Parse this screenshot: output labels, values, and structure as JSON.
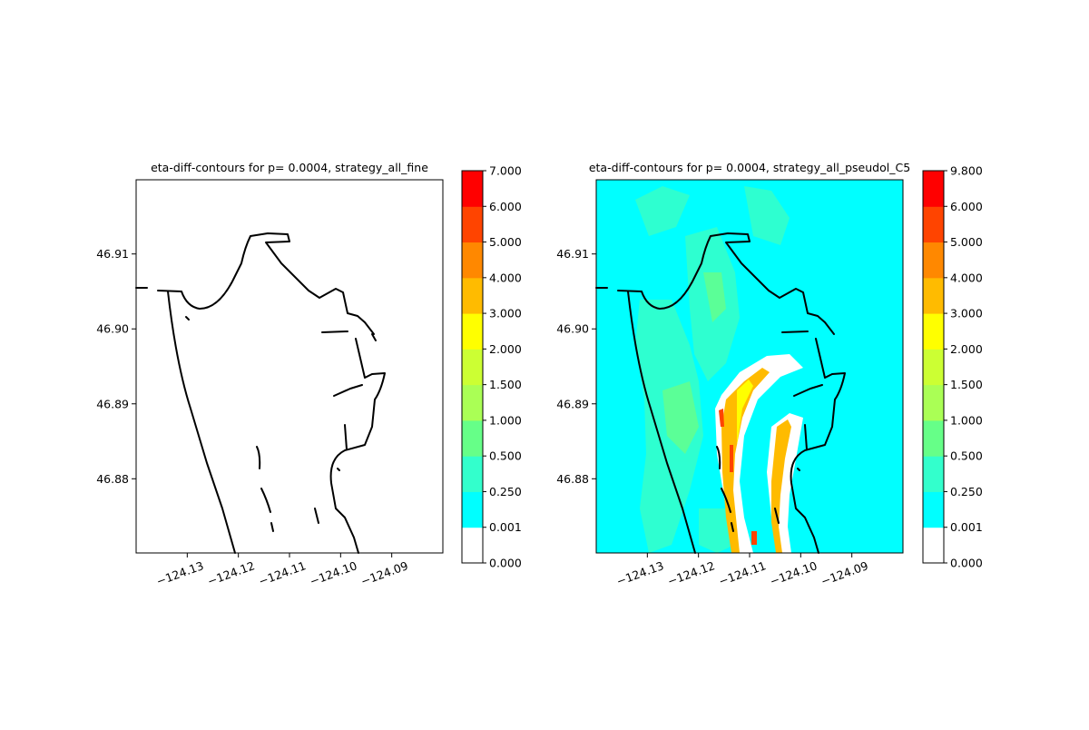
{
  "chart_data": [
    {
      "type": "heatmap",
      "title": "eta-diff-contours for p= 0.0004, strategy_all_fine",
      "xlabel": "",
      "ylabel": "",
      "xlim": [
        -124.14,
        -124.08
      ],
      "ylim": [
        46.8701,
        46.9199
      ],
      "x_ticks": [
        -124.13,
        -124.12,
        -124.11,
        -124.1,
        -124.09
      ],
      "x_tick_labels": [
        "−124.13",
        "−124.12",
        "−124.11",
        "−124.10",
        "−124.09"
      ],
      "y_ticks": [
        46.88,
        46.89,
        46.9,
        46.91
      ],
      "y_tick_labels": [
        "46.88",
        "46.89",
        "46.90",
        "46.91"
      ],
      "colorbar": {
        "levels": [
          "0.000",
          "0.001",
          "0.250",
          "0.500",
          "1.000",
          "1.500",
          "2.000",
          "3.000",
          "4.000",
          "5.000",
          "6.000",
          "7.000"
        ],
        "colors": [
          "#ffffff",
          "#00ffff",
          "#33ffcc",
          "#66ff88",
          "#aaff55",
          "#ccff33",
          "#ffff00",
          "#ffbb00",
          "#ff8800",
          "#ff4400",
          "#ff0000"
        ]
      },
      "fill": "none"
    },
    {
      "type": "heatmap",
      "title": "eta-diff-contours for p= 0.0004, strategy_all_pseudol_C5",
      "xlabel": "",
      "ylabel": "",
      "xlim": [
        -124.14,
        -124.08
      ],
      "ylim": [
        46.8701,
        46.9199
      ],
      "x_ticks": [
        -124.13,
        -124.12,
        -124.11,
        -124.1,
        -124.09
      ],
      "x_tick_labels": [
        "−124.13",
        "−124.12",
        "−124.11",
        "−124.10",
        "−124.09"
      ],
      "y_ticks": [
        46.88,
        46.89,
        46.9,
        46.91
      ],
      "y_tick_labels": [
        "46.88",
        "46.89",
        "46.90",
        "46.91"
      ],
      "colorbar": {
        "levels": [
          "0.000",
          "0.001",
          "0.250",
          "0.500",
          "1.000",
          "1.500",
          "2.000",
          "3.000",
          "4.000",
          "5.000",
          "6.000",
          "9.800"
        ],
        "colors": [
          "#ffffff",
          "#00ffff",
          "#33ffcc",
          "#66ff88",
          "#aaff55",
          "#ccff33",
          "#ffff00",
          "#ffbb00",
          "#ff8800",
          "#ff4400",
          "#ff0000"
        ]
      },
      "fill": "cyan-with-green-patches-and-orange-band"
    }
  ]
}
